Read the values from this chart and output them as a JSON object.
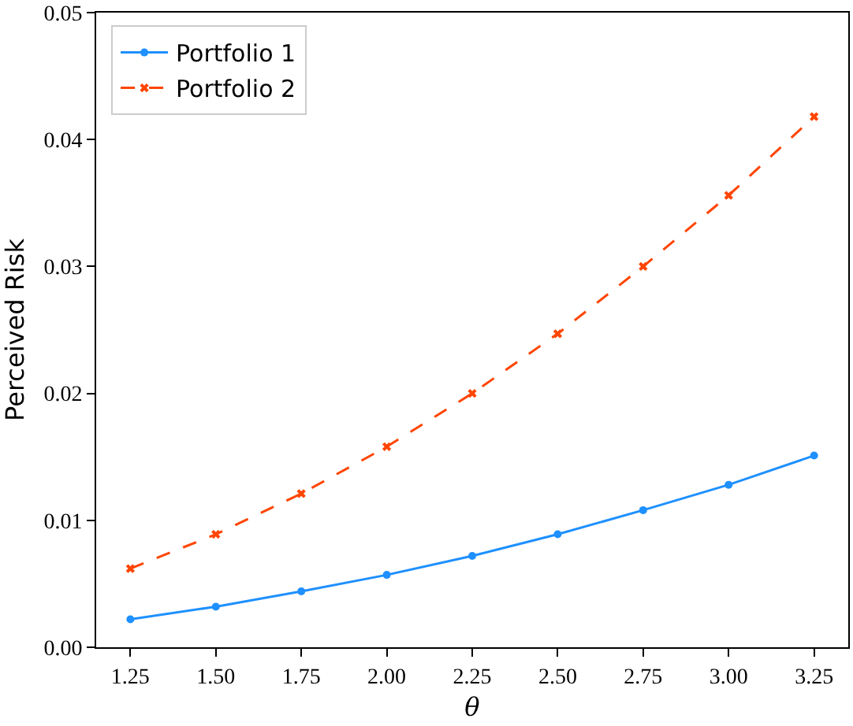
{
  "chart_data": {
    "type": "line",
    "xlabel": "θ",
    "ylabel": "Perceived Risk",
    "x": [
      1.25,
      1.5,
      1.75,
      2.0,
      2.25,
      2.5,
      2.75,
      3.0,
      3.25
    ],
    "series": [
      {
        "name": "Portfolio 1",
        "color": "#1e90ff",
        "marker": "circle",
        "line_style": "solid",
        "values": [
          0.0022,
          0.0032,
          0.0044,
          0.0057,
          0.0072,
          0.0089,
          0.0108,
          0.0128,
          0.0151
        ]
      },
      {
        "name": "Portfolio 2",
        "color": "#ff4500",
        "marker": "cross",
        "line_style": "dashed",
        "values": [
          0.0062,
          0.0089,
          0.0121,
          0.0158,
          0.02,
          0.0247,
          0.03,
          0.0356,
          0.0418
        ]
      }
    ],
    "xlim": [
      1.15,
      3.35
    ],
    "xticks": [
      {
        "value": 1.25,
        "label": "1.25"
      },
      {
        "value": 1.5,
        "label": "1.50"
      },
      {
        "value": 1.75,
        "label": "1.75"
      },
      {
        "value": 2.0,
        "label": "2.00"
      },
      {
        "value": 2.25,
        "label": "2.25"
      },
      {
        "value": 2.5,
        "label": "2.50"
      },
      {
        "value": 2.75,
        "label": "2.75"
      },
      {
        "value": 3.0,
        "label": "3.00"
      },
      {
        "value": 3.25,
        "label": "3.25"
      }
    ],
    "ylim": [
      0,
      0.05
    ],
    "yticks": [
      {
        "value": 0,
        "label": "0.00"
      },
      {
        "value": 0.01,
        "label": "0.01"
      },
      {
        "value": 0.02,
        "label": "0.02"
      },
      {
        "value": 0.03,
        "label": "0.03"
      },
      {
        "value": 0.04,
        "label": "0.04"
      },
      {
        "value": 0.05,
        "label": "0.05"
      }
    ],
    "legend": "top left"
  }
}
